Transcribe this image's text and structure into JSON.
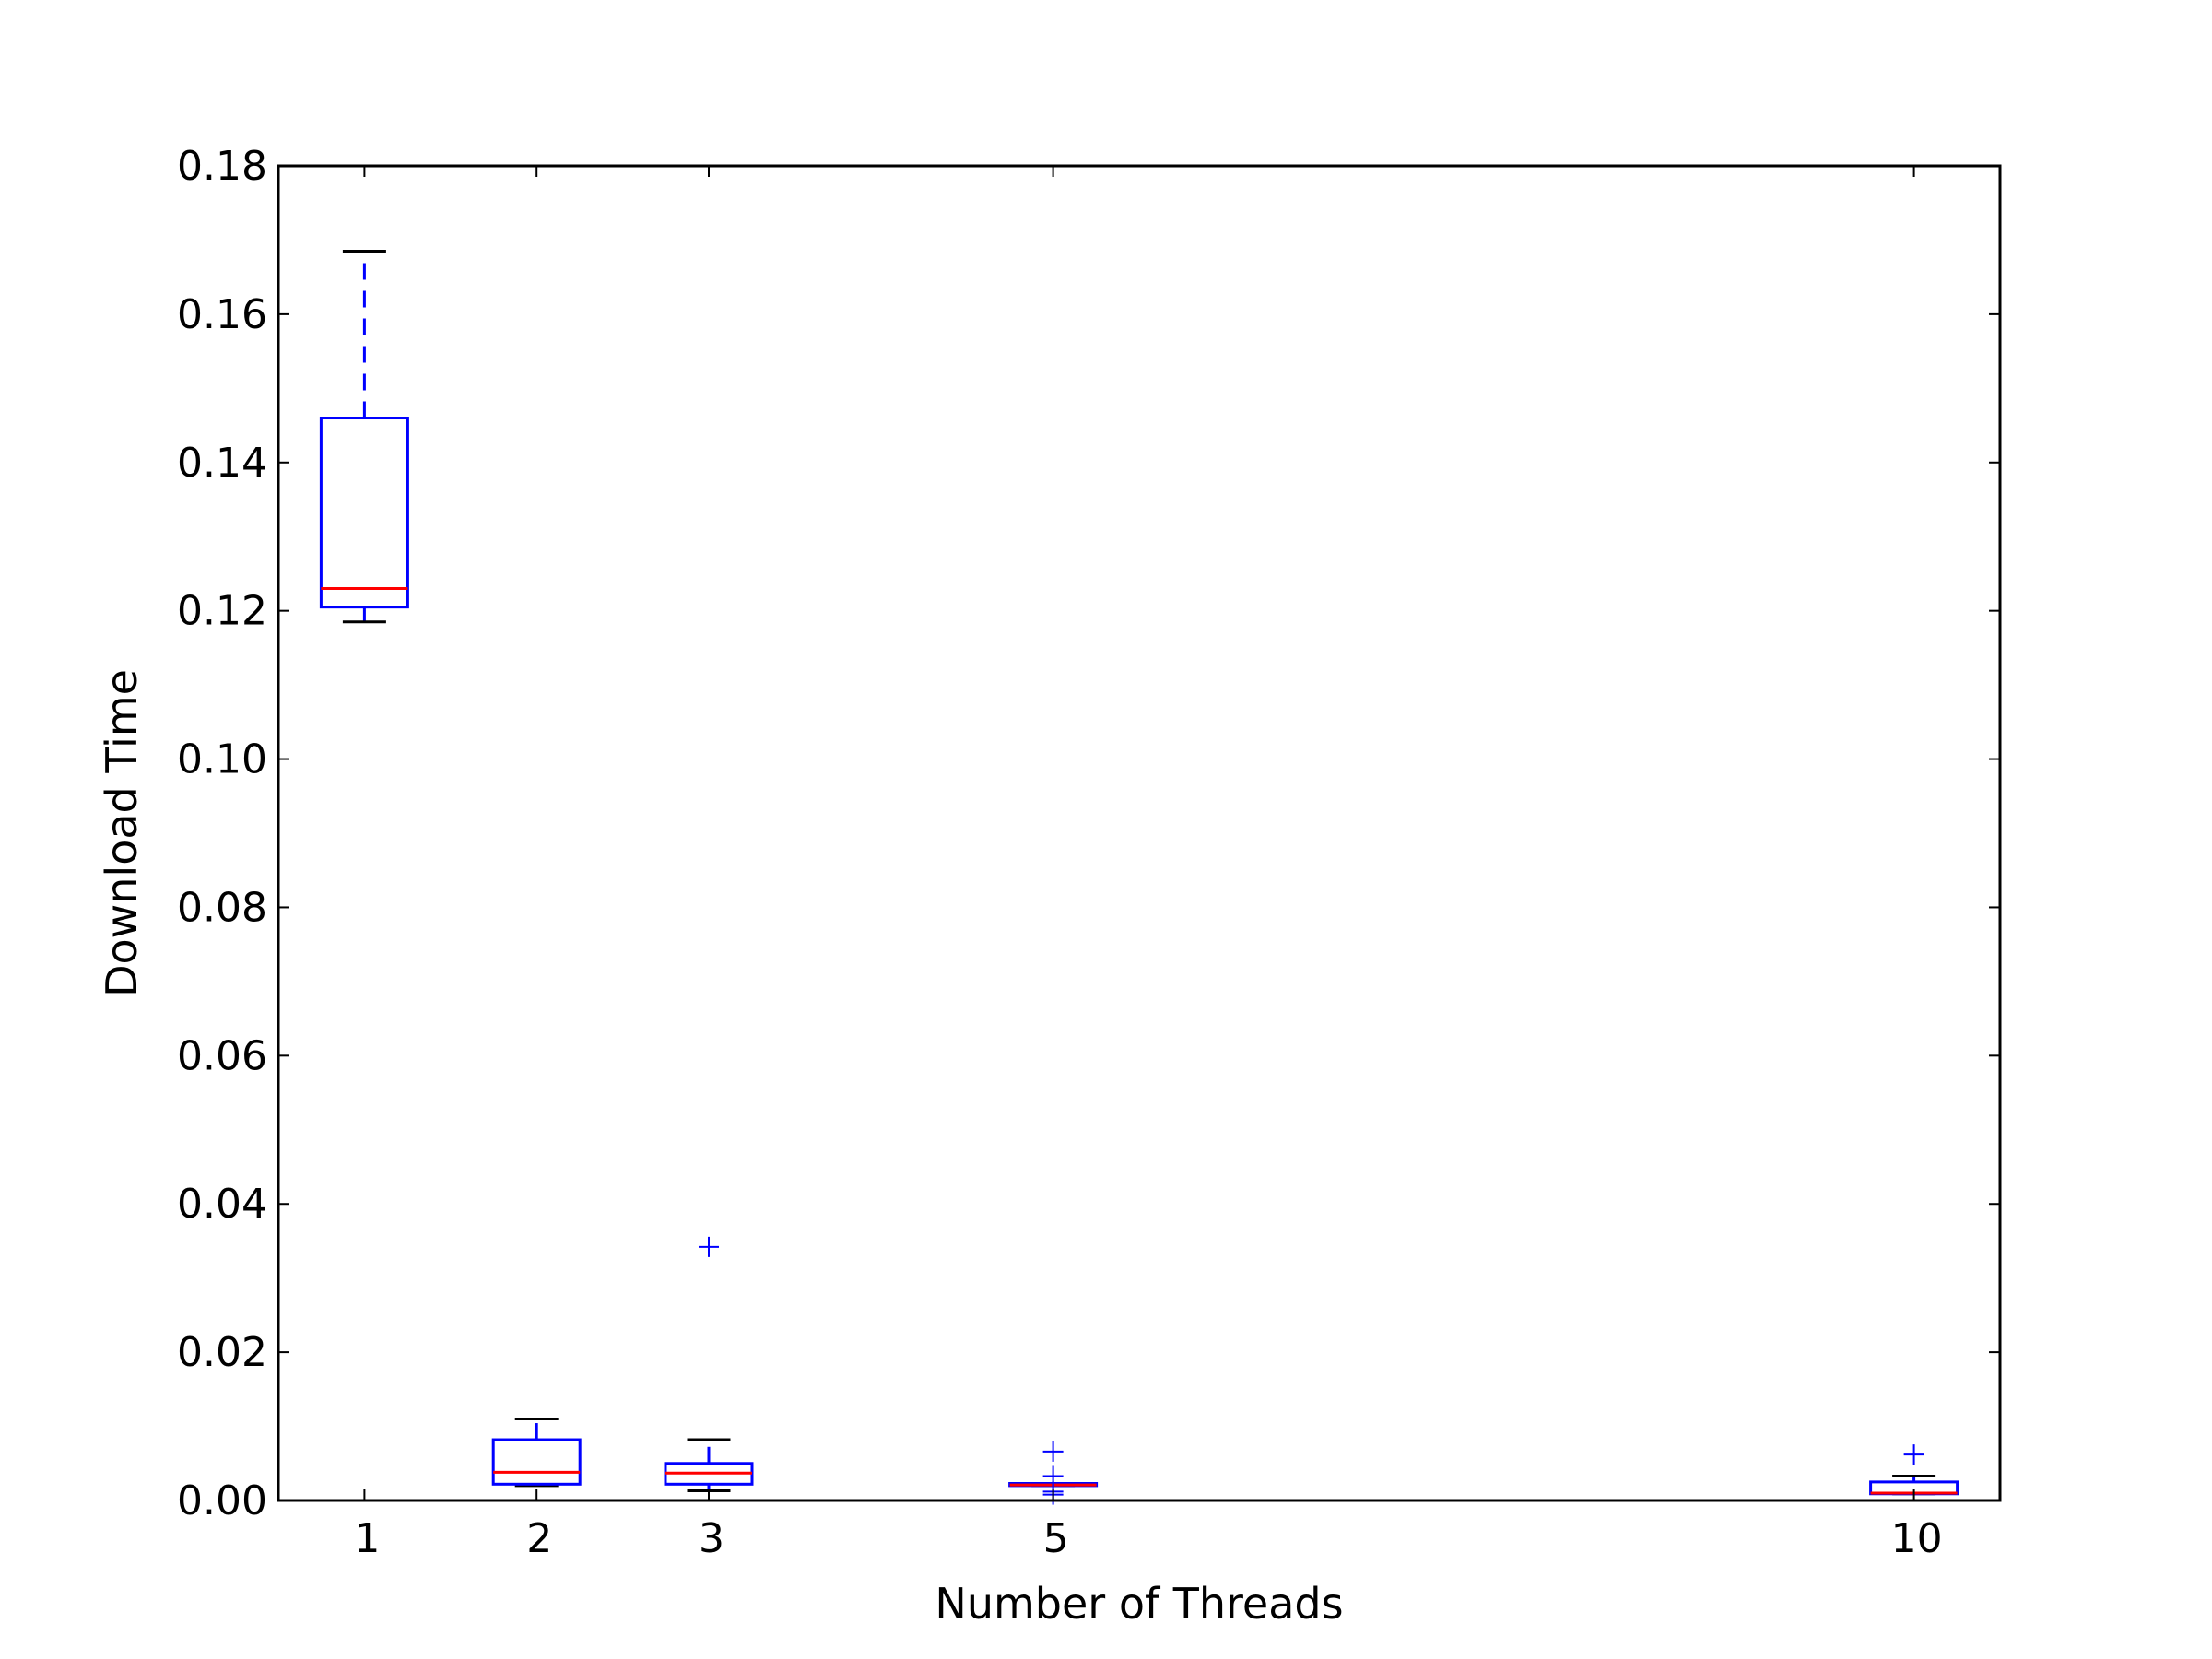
{
  "chart_data": {
    "type": "box",
    "xlabel": "Number of Threads",
    "ylabel": "Download Time",
    "xlim": [
      0.5,
      10.5
    ],
    "ylim": [
      0,
      0.18
    ],
    "yticks": [
      0.0,
      0.02,
      0.04,
      0.06,
      0.08,
      0.1,
      0.12,
      0.14,
      0.16,
      0.18
    ],
    "ytick_labels": [
      "0.00",
      "0.02",
      "0.04",
      "0.06",
      "0.08",
      "0.10",
      "0.12",
      "0.14",
      "0.16",
      "0.18"
    ],
    "grid": false,
    "series": [
      {
        "x": 1,
        "label": "1",
        "whisker_low": 0.1185,
        "q1": 0.1205,
        "median": 0.123,
        "q3": 0.146,
        "whisker_high": 0.1685,
        "outliers": []
      },
      {
        "x": 2,
        "label": "2",
        "whisker_low": 0.002,
        "q1": 0.0022,
        "median": 0.0038,
        "q3": 0.0082,
        "whisker_high": 0.011,
        "outliers": []
      },
      {
        "x": 3,
        "label": "3",
        "whisker_low": 0.0013,
        "q1": 0.0022,
        "median": 0.0037,
        "q3": 0.005,
        "whisker_high": 0.0082,
        "outliers": [
          0.0342
        ]
      },
      {
        "x": 5,
        "label": "5",
        "whisker_low": 0.002,
        "q1": 0.002,
        "median": 0.0021,
        "q3": 0.0023,
        "whisker_high": 0.0023,
        "outliers": [
          0.0066,
          0.0033,
          0.0012,
          0.0008
        ]
      },
      {
        "x": 10,
        "label": "10",
        "whisker_low": 0.0009,
        "q1": 0.0009,
        "median": 0.001,
        "q3": 0.0025,
        "whisker_high": 0.0033,
        "outliers": [
          0.0062
        ]
      }
    ],
    "colors": {
      "box": "#0000ff",
      "median": "#ff0000",
      "cap": "#000000",
      "outlier": "#0000ff",
      "axes": "#000000"
    }
  }
}
